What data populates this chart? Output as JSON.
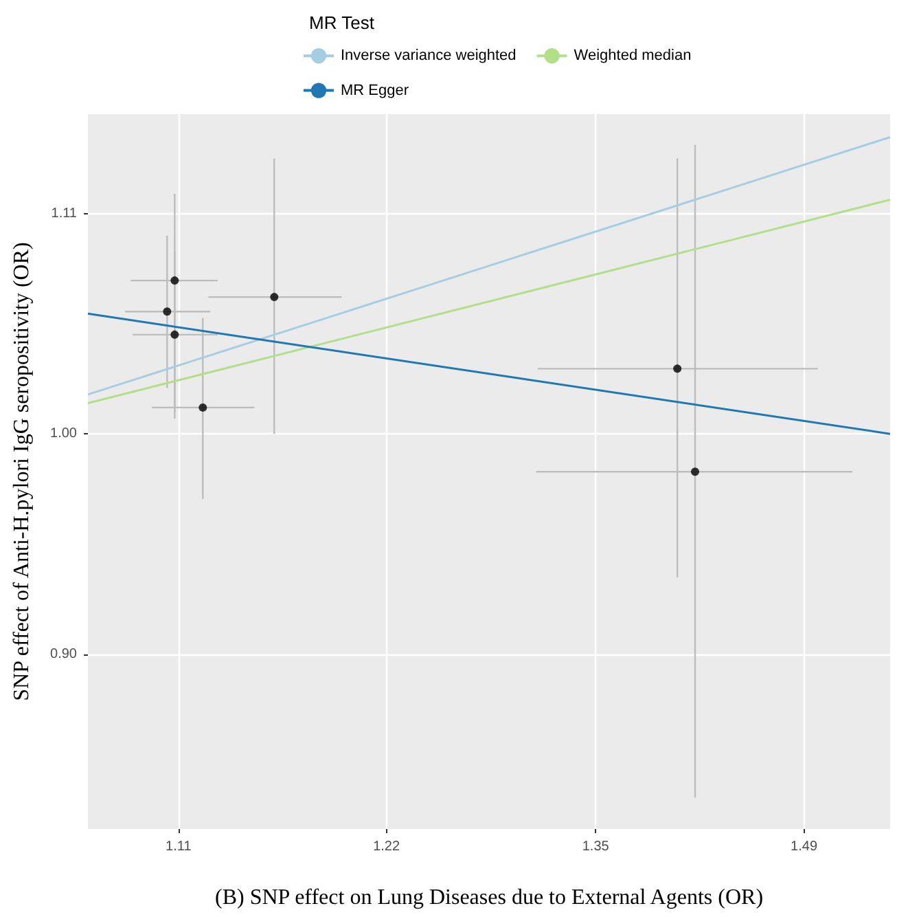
{
  "chart_data": {
    "type": "scatter",
    "xlabel": "(B) SNP effect on Lung Diseases due to External Agents (OR)",
    "ylabel": "SNP effect of Anti-H.pylori IgG seropositivity (OR)",
    "legend_title": "MR Test",
    "legend": "top",
    "grid": true,
    "log": "xy",
    "xlim": [
      1.058,
      1.555
    ],
    "ylim": [
      0.836,
      1.156
    ],
    "xticks": [
      {
        "value": 1.105,
        "label": "1.11"
      },
      {
        "value": 1.221,
        "label": "1.22"
      },
      {
        "value": 1.35,
        "label": "1.35"
      },
      {
        "value": 1.492,
        "label": "1.49"
      }
    ],
    "yticks": [
      {
        "value": 0.905,
        "label": "0.90"
      },
      {
        "value": 1.0,
        "label": "1.00"
      },
      {
        "value": 1.105,
        "label": "1.11"
      }
    ],
    "series": [
      {
        "marker": "circle",
        "color": "#000000",
        "x": [
          1.103,
          1.099,
          1.103,
          1.118,
          1.157,
          1.404,
          1.416
        ],
        "values": [
          1.072,
          1.057,
          1.046,
          1.012,
          1.064,
          1.03,
          0.983
        ],
        "errors": [
          [
            1.01,
            1.115
          ],
          [
            1.021,
            1.094
          ],
          [
            1.007,
            1.086
          ],
          [
            0.971,
            1.054
          ],
          [
            1.0,
            1.133
          ],
          [
            0.937,
            1.133
          ],
          [
            0.848,
            1.14
          ]
        ],
        "xerrors": [
          [
            1.08,
            1.126
          ],
          [
            1.077,
            1.122
          ],
          [
            1.081,
            1.126
          ],
          [
            1.091,
            1.146
          ],
          [
            1.121,
            1.195
          ],
          [
            1.313,
            1.502
          ],
          [
            1.312,
            1.527
          ]
        ]
      },
      {
        "type": "line",
        "name": "Inverse variance weighted",
        "color": "#a6cee3",
        "x": [
          1.058,
          1.555
        ],
        "values": [
          1.018,
          1.144
        ]
      },
      {
        "type": "line",
        "name": "Weighted median",
        "color": "#b2df8a",
        "x": [
          1.058,
          1.555
        ],
        "values": [
          1.014,
          1.112
        ]
      },
      {
        "type": "line",
        "name": "MR Egger",
        "color": "#1f78b4",
        "x": [
          1.058,
          1.555
        ],
        "values": [
          1.056,
          1.0
        ]
      }
    ]
  }
}
